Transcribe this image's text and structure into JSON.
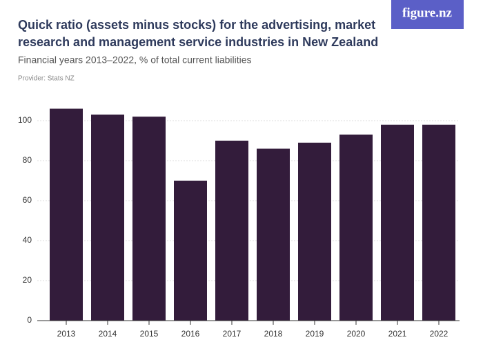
{
  "logo": "figure.nz",
  "chart_data": {
    "type": "bar",
    "title": [
      "Quick ratio (assets minus stocks) for the advertising, market",
      "research and management service industries in New Zealand"
    ],
    "subtitle": "Financial years 2013–2022, % of total current liabilities",
    "provider": "Provider: Stats NZ",
    "categories": [
      "2013",
      "2014",
      "2015",
      "2016",
      "2017",
      "2018",
      "2019",
      "2020",
      "2021",
      "2022"
    ],
    "values": [
      106,
      103,
      102,
      70,
      90,
      86,
      89,
      93,
      98,
      98
    ],
    "color": "#331c3b",
    "ylim": [
      0,
      110
    ],
    "yticks": [
      0,
      20,
      40,
      60,
      80,
      100
    ],
    "grid": true
  }
}
